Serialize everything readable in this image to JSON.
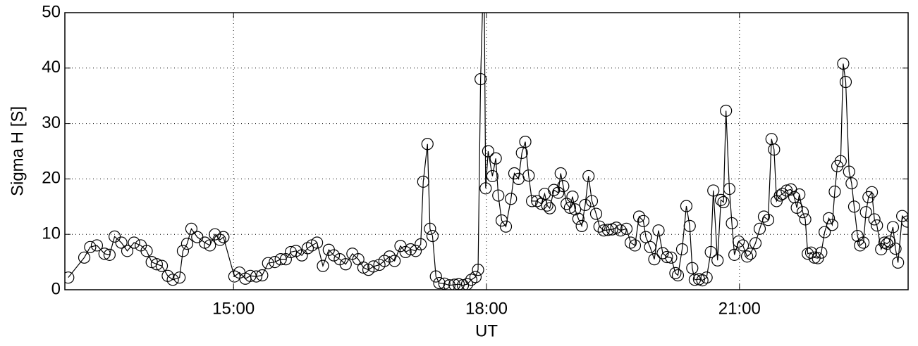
{
  "chart_data": {
    "type": "line",
    "x_label": "UT",
    "y_label": "Sigma H [S]",
    "xlim": [
      13,
      23
    ],
    "ylim": [
      0,
      50
    ],
    "xticks": [
      {
        "value": 15,
        "label": "15:00"
      },
      {
        "value": 18,
        "label": "18:00"
      },
      {
        "value": 21,
        "label": "21:00"
      }
    ],
    "yticks": [
      0,
      10,
      20,
      30,
      40,
      50
    ],
    "grid": true,
    "color": "#000000",
    "x": [
      13.04,
      13.23,
      13.3,
      13.38,
      13.47,
      13.53,
      13.59,
      13.67,
      13.74,
      13.82,
      13.9,
      13.97,
      14.03,
      14.09,
      14.15,
      14.22,
      14.28,
      14.36,
      14.4,
      14.45,
      14.5,
      14.57,
      14.66,
      14.72,
      14.78,
      14.84,
      14.88,
      15.01,
      15.07,
      15.14,
      15.2,
      15.27,
      15.34,
      15.41,
      15.49,
      15.56,
      15.62,
      15.68,
      15.74,
      15.81,
      15.88,
      15.93,
      15.99,
      16.06,
      16.13,
      16.19,
      16.26,
      16.33,
      16.41,
      16.48,
      16.54,
      16.6,
      16.66,
      16.73,
      16.79,
      16.85,
      16.91,
      16.98,
      17.04,
      17.1,
      17.16,
      17.22,
      17.25,
      17.3,
      17.33,
      17.36,
      17.4,
      17.44,
      17.5,
      17.56,
      17.62,
      17.67,
      17.72,
      17.77,
      17.82,
      17.87,
      17.9,
      17.93,
      17.97,
      17.99,
      18.02,
      18.07,
      18.11,
      18.14,
      18.18,
      18.23,
      18.29,
      18.33,
      18.38,
      18.42,
      18.46,
      18.5,
      18.54,
      18.6,
      18.65,
      18.69,
      18.72,
      18.75,
      18.8,
      18.85,
      18.88,
      18.91,
      18.95,
      18.99,
      19.02,
      19.05,
      19.09,
      19.13,
      19.17,
      19.21,
      19.25,
      19.3,
      19.34,
      19.39,
      19.44,
      19.49,
      19.54,
      19.59,
      19.66,
      19.71,
      19.76,
      19.81,
      19.86,
      19.89,
      19.94,
      19.99,
      20.04,
      20.09,
      20.14,
      20.19,
      20.24,
      20.27,
      20.32,
      20.37,
      20.41,
      20.44,
      20.47,
      20.52,
      20.56,
      20.61,
      20.66,
      20.69,
      20.74,
      20.78,
      20.81,
      20.84,
      20.88,
      20.91,
      20.94,
      20.99,
      21.04,
      21.09,
      21.13,
      21.19,
      21.24,
      21.29,
      21.34,
      21.38,
      21.41,
      21.44,
      21.48,
      21.51,
      21.56,
      21.61,
      21.65,
      21.68,
      21.71,
      21.75,
      21.78,
      21.81,
      21.85,
      21.89,
      21.93,
      21.97,
      22.01,
      22.06,
      22.1,
      22.13,
      22.16,
      22.2,
      22.23,
      22.26,
      22.3,
      22.33,
      22.36,
      22.4,
      22.43,
      22.47,
      22.5,
      22.53,
      22.57,
      22.6,
      22.63,
      22.68,
      22.72,
      22.75,
      22.78,
      22.82,
      22.85,
      22.88,
      22.93,
      22.99
    ],
    "values": [
      2.2,
      5.8,
      7.7,
      8.0,
      6.5,
      6.3,
      9.6,
      8.5,
      7.0,
      8.5,
      8,
      7,
      5,
      4.6,
      4.3,
      2.5,
      1.8,
      2.2,
      7,
      8.3,
      11,
      9.5,
      8.5,
      8,
      10,
      9,
      9.5,
      2.4,
      3.1,
      2,
      2.5,
      2.4,
      2.6,
      4.8,
      5,
      5.5,
      5.5,
      6.8,
      7,
      6.2,
      7.5,
      8,
      8.5,
      4.3,
      7.2,
      6.2,
      5.5,
      4.6,
      6.5,
      5.5,
      4,
      3.6,
      4.2,
      4.5,
      5.2,
      6,
      5.2,
      7.9,
      6.8,
      7.3,
      7,
      8.2,
      19.5,
      26.3,
      11,
      9.7,
      2.4,
      1.2,
      1.1,
      0.8,
      0.9,
      1,
      0.8,
      1,
      1.8,
      2.3,
      3.6,
      38,
      60,
      18.3,
      25,
      20.5,
      23.7,
      17,
      12.5,
      11.4,
      16.4,
      21,
      20,
      24.7,
      26.7,
      20.6,
      16,
      16,
      15.5,
      17.3,
      15.2,
      14.7,
      18,
      17.5,
      21,
      18.7,
      15.5,
      14.8,
      16.8,
      14.5,
      12.8,
      11.5,
      15.3,
      20.5,
      16,
      13.7,
      11.4,
      10.7,
      10.8,
      10.9,
      11.2,
      10.7,
      11,
      8.5,
      8,
      13.2,
      12.4,
      9.5,
      7.7,
      5.5,
      10.7,
      6.6,
      5.9,
      5.8,
      3,
      2.6,
      7.3,
      15.1,
      11.5,
      3.9,
      1.8,
      1.9,
      1.7,
      2.2,
      6.8,
      17.9,
      5.3,
      16.2,
      15.8,
      32.3,
      18.2,
      12,
      6.3,
      8.7,
      8,
      6,
      6.5,
      8.4,
      11,
      13.2,
      12.6,
      27.2,
      25.3,
      16,
      17,
      17.3,
      17.9,
      18.1,
      16.7,
      14.8,
      17.2,
      14,
      12.7,
      6.5,
      6.7,
      5.8,
      5.7,
      6.7,
      10.4,
      12.9,
      11.7,
      17.7,
      22.3,
      23.2,
      40.8,
      37.5,
      21.3,
      19.2,
      15,
      9.7,
      8,
      8.5,
      14,
      16.7,
      17.6,
      12.7,
      11.6,
      7.3,
      8.5,
      8.3,
      8.7,
      11.3,
      7.4,
      4.9,
      13.3,
      12.3
    ]
  }
}
